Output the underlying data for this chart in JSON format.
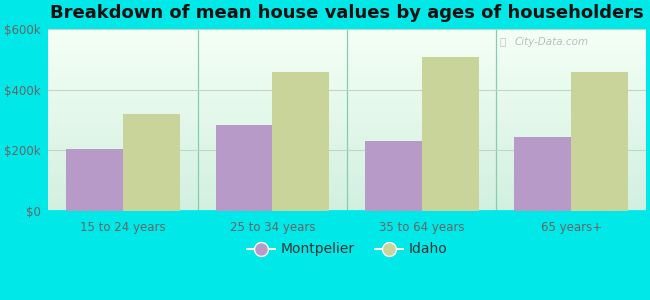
{
  "title": "Breakdown of mean house values by ages of householders",
  "categories": [
    "15 to 24 years",
    "25 to 34 years",
    "35 to 64 years",
    "65 years+"
  ],
  "montpelier": [
    205000,
    285000,
    230000,
    245000
  ],
  "idaho": [
    320000,
    460000,
    510000,
    460000
  ],
  "montpelier_color": "#b89ac8",
  "idaho_color": "#c8d49a",
  "background_color": "#00e8e8",
  "plot_bg_top": "#f5fff5",
  "plot_bg_bottom": "#c8f0d8",
  "ylim": [
    0,
    600000
  ],
  "yticks": [
    0,
    200000,
    400000,
    600000
  ],
  "ytick_labels": [
    "$0",
    "$200k",
    "$400k",
    "$600k"
  ],
  "legend_montpelier": "Montpelier",
  "legend_idaho": "Idaho",
  "title_fontsize": 13,
  "bar_width": 0.38,
  "watermark": "City-Data.com",
  "grid_color": "#c0d8c0",
  "separator_color": "#88ccaa",
  "tick_color": "#666666"
}
